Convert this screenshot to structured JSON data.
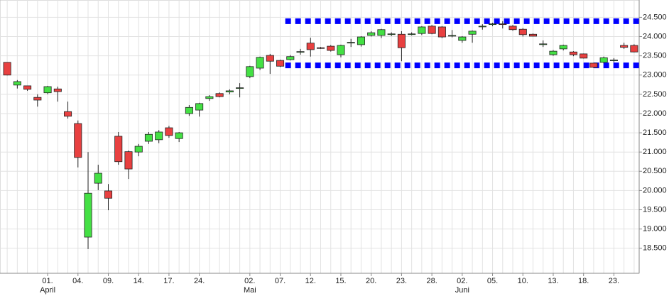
{
  "chart_data": {
    "type": "candlestick",
    "categories": [
      null,
      null,
      null,
      null,
      "01.",
      null,
      null,
      "04.",
      null,
      null,
      "09.",
      null,
      null,
      "14.",
      null,
      null,
      "17.",
      null,
      null,
      "24.",
      null,
      null,
      null,
      null,
      "02.",
      null,
      null,
      "07.",
      null,
      null,
      "12.",
      null,
      null,
      "15.",
      null,
      null,
      "20.",
      null,
      null,
      "23.",
      null,
      null,
      "28.",
      null,
      null,
      "02.",
      null,
      null,
      "05.",
      null,
      null,
      "10.",
      null,
      null,
      "13.",
      null,
      null,
      "18.",
      null,
      null,
      "23.",
      null,
      null
    ],
    "months": [
      "April",
      "Mai",
      "Juni"
    ],
    "up_color": "#44e044",
    "down_color": "#e84040",
    "open": [
      23330,
      22740,
      22720,
      22420,
      22540,
      22640,
      22050,
      21740,
      18790,
      20190,
      19990,
      21410,
      21010,
      21000,
      21280,
      21320,
      21630,
      21350,
      22000,
      22090,
      22390,
      22520,
      22560,
      22660,
      22960,
      23180,
      23510,
      23380,
      23400,
      23600,
      23830,
      23710,
      23750,
      23530,
      23840,
      23790,
      24030,
      24030,
      24060,
      24060,
      24060,
      24080,
      24270,
      24250,
      24020,
      23900,
      24060,
      24260,
      24320,
      24330,
      24270,
      24190,
      24060,
      23810,
      23530,
      23680,
      23600,
      23550,
      23310,
      23330,
      23380,
      23770,
      23770
    ],
    "high": [
      23330,
      22870,
      22720,
      22500,
      22720,
      22700,
      22310,
      21820,
      21000,
      20670,
      20170,
      21520,
      21040,
      21210,
      21520,
      21570,
      21680,
      21520,
      22220,
      22280,
      22480,
      22550,
      22630,
      22790,
      23240,
      23480,
      23550,
      23400,
      23520,
      23680,
      23970,
      23730,
      23780,
      23790,
      23940,
      24010,
      24140,
      24200,
      24110,
      24140,
      24110,
      24270,
      24300,
      24270,
      24170,
      24010,
      24160,
      24320,
      24360,
      24400,
      24300,
      24220,
      24080,
      23900,
      23650,
      23790,
      23620,
      23560,
      23320,
      23480,
      23440,
      23840,
      23800
    ],
    "low": [
      22990,
      22650,
      22590,
      22180,
      22500,
      22310,
      21870,
      20600,
      18480,
      20010,
      19490,
      20670,
      20300,
      20890,
      21210,
      21230,
      21370,
      21260,
      21940,
      21920,
      22330,
      22420,
      22500,
      22420,
      22920,
      23130,
      23030,
      23210,
      23380,
      23530,
      23480,
      23680,
      23610,
      23460,
      23730,
      23740,
      24000,
      23960,
      24010,
      23360,
      24030,
      24040,
      24060,
      23960,
      23980,
      23840,
      23840,
      24180,
      24270,
      24210,
      24150,
      24000,
      24000,
      23730,
      23500,
      23640,
      23490,
      23430,
      23180,
      23300,
      23330,
      23680,
      23590
    ],
    "close": [
      23000,
      22830,
      22630,
      22350,
      22700,
      22570,
      21930,
      20860,
      19930,
      20450,
      19800,
      20750,
      20560,
      21150,
      21460,
      21520,
      21430,
      21500,
      22160,
      22260,
      22440,
      22440,
      22590,
      22670,
      23220,
      23460,
      23360,
      23230,
      23480,
      23610,
      23660,
      23700,
      23640,
      23770,
      23850,
      23990,
      24100,
      24180,
      24070,
      23710,
      24070,
      24250,
      24080,
      23990,
      24030,
      23990,
      24140,
      24270,
      24330,
      24320,
      24180,
      24050,
      24010,
      23810,
      23620,
      23770,
      23530,
      23440,
      23200,
      23450,
      23390,
      23720,
      23600
    ],
    "levels": [
      {
        "value": 24400,
        "from": 28,
        "color": "#0000ff"
      },
      {
        "value": 23250,
        "from": 28,
        "color": "#0000ff"
      }
    ],
    "ylim": [
      17850,
      24950
    ],
    "yticks": [
      {
        "value": 18500,
        "label": "18.500"
      },
      {
        "value": 19000,
        "label": "19.000"
      },
      {
        "value": 19500,
        "label": "19.500"
      },
      {
        "value": 20000,
        "label": "20.000"
      },
      {
        "value": 20500,
        "label": "20.500"
      },
      {
        "value": 21000,
        "label": "21.000"
      },
      {
        "value": 21500,
        "label": "21.500"
      },
      {
        "value": 22000,
        "label": "22.000"
      },
      {
        "value": 22500,
        "label": "22.500"
      },
      {
        "value": 23000,
        "label": "23.000"
      },
      {
        "value": 23500,
        "label": "23.500"
      },
      {
        "value": 24000,
        "label": "24.000"
      },
      {
        "value": 24500,
        "label": "24.500"
      }
    ],
    "grid": true
  }
}
